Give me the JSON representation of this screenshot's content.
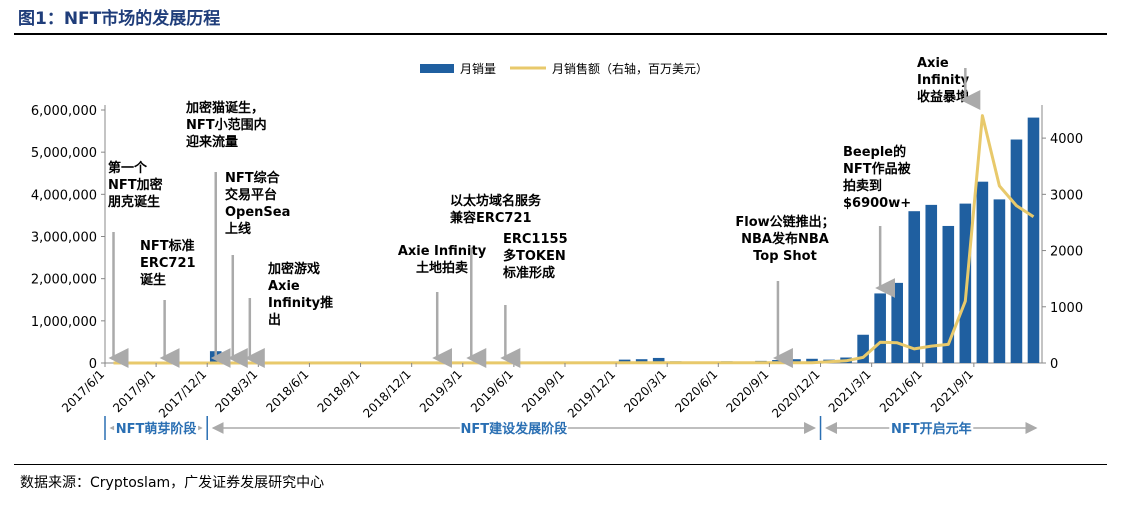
{
  "header": {
    "title": "图1：NFT市场的发展历程"
  },
  "footer": {
    "source": "数据来源：Cryptoslam，广发证券发展研究中心"
  },
  "colors": {
    "bar": "#1f5fa0",
    "line": "#e8c96b",
    "axis": "#888888",
    "phase": "#2a6fb3",
    "arrow": "#aaaaaa",
    "title": "#1f3d7a"
  },
  "chart_data": {
    "type": "bar",
    "title": "",
    "series": [
      {
        "name": "月销量",
        "type": "bar",
        "axis": "left"
      },
      {
        "name": "月销售额（右轴，百万美元）",
        "type": "line",
        "axis": "right"
      }
    ],
    "legend_position": "top-right",
    "x_tick_labels": [
      "2017/6/1",
      "2017/9/1",
      "2017/12/1",
      "2018/3/1",
      "2018/6/1",
      "2018/9/1",
      "2018/12/1",
      "2019/3/1",
      "2019/6/1",
      "2019/9/1",
      "2019/12/1",
      "2020/3/1",
      "2020/6/1",
      "2020/9/1",
      "2020/12/1",
      "2021/3/1",
      "2021/6/1",
      "2021/9/1"
    ],
    "y_left": {
      "range": [
        0,
        6000000
      ],
      "ticks": [
        "0",
        "1,000,000",
        "2,000,000",
        "3,000,000",
        "4,000,000",
        "5,000,000",
        "6,000,000"
      ]
    },
    "y_right": {
      "range": [
        0,
        4500
      ],
      "ticks": [
        "0",
        "1000",
        "2000",
        "3000",
        "4000"
      ]
    },
    "start_month": "2017-06",
    "bars": [
      {
        "m": "2017-12",
        "v": 280000
      },
      {
        "m": "2019-12",
        "v": 80000
      },
      {
        "m": "2020-01",
        "v": 90000
      },
      {
        "m": "2020-02",
        "v": 120000
      },
      {
        "m": "2020-03",
        "v": 40000
      },
      {
        "m": "2020-06",
        "v": 40000
      },
      {
        "m": "2020-08",
        "v": 50000
      },
      {
        "m": "2020-09",
        "v": 70000
      },
      {
        "m": "2020-10",
        "v": 90000
      },
      {
        "m": "2020-11",
        "v": 100000
      },
      {
        "m": "2020-12",
        "v": 80000
      },
      {
        "m": "2021-01",
        "v": 130000
      },
      {
        "m": "2021-02",
        "v": 670000
      },
      {
        "m": "2021-03",
        "v": 1650000
      },
      {
        "m": "2021-04",
        "v": 1900000
      },
      {
        "m": "2021-05",
        "v": 3600000
      },
      {
        "m": "2021-06",
        "v": 3750000
      },
      {
        "m": "2021-07",
        "v": 3250000
      },
      {
        "m": "2021-08",
        "v": 3780000
      },
      {
        "m": "2021-09",
        "v": 4300000
      },
      {
        "m": "2021-10",
        "v": 3880000
      },
      {
        "m": "2021-11",
        "v": 5300000
      },
      {
        "m": "2021-12",
        "v": 5820000
      }
    ],
    "line": [
      {
        "m": "2017-06",
        "v": 0
      },
      {
        "m": "2020-11",
        "v": 5
      },
      {
        "m": "2021-01",
        "v": 40
      },
      {
        "m": "2021-02",
        "v": 100
      },
      {
        "m": "2021-03",
        "v": 370
      },
      {
        "m": "2021-04",
        "v": 360
      },
      {
        "m": "2021-05",
        "v": 250
      },
      {
        "m": "2021-06",
        "v": 300
      },
      {
        "m": "2021-07",
        "v": 330
      },
      {
        "m": "2021-08",
        "v": 1100
      },
      {
        "m": "2021-09",
        "v": 4400
      },
      {
        "m": "2021-10",
        "v": 3150
      },
      {
        "m": "2021-11",
        "v": 2800
      },
      {
        "m": "2021-12",
        "v": 2600
      }
    ],
    "annotations": [
      {
        "text": [
          "第一个",
          "NFT加密",
          "朋克诞生"
        ],
        "m": "2017-06",
        "ax": "left"
      },
      {
        "text": [
          "NFT标准",
          "ERC721",
          "诞生"
        ],
        "m": "2017-09",
        "ax": "left"
      },
      {
        "text": [
          "加密猫诞生，",
          "NFT小范围内",
          "迎来流量"
        ],
        "m": "2017-12",
        "ax": "left"
      },
      {
        "text": [
          "NFT综合",
          "交易平台",
          "OpenSea",
          "上线"
        ],
        "m": "2018-01",
        "ax": "left"
      },
      {
        "text": [
          "加密游戏",
          "Axie",
          "Infinity推",
          "出"
        ],
        "m": "2018-02",
        "ax": "left"
      },
      {
        "text": [
          "Axie Infinity",
          "土地拍卖"
        ],
        "m": "2019-01",
        "ax": "center"
      },
      {
        "text": [
          "以太坊域名服务",
          "兼容ERC721"
        ],
        "m": "2019-03",
        "ax": "left"
      },
      {
        "text": [
          "ERC1155",
          "多TOKEN",
          "标准形成"
        ],
        "m": "2019-05",
        "ax": "left"
      },
      {
        "text": [
          "Flow公链推出；",
          "NBA发布NBA",
          "Top Shot"
        ],
        "m": "2020-09",
        "ax": "center"
      },
      {
        "text": [
          "Beeple的",
          "NFT作品被",
          "拍卖到",
          "$6900w+"
        ],
        "m": "2021-03",
        "ax": "left"
      },
      {
        "text": [
          "Axie",
          "Infinity",
          "收益暴增"
        ],
        "m": "2021-08",
        "ax": "left"
      }
    ],
    "phases": [
      {
        "label": "NFT萌芽阶段",
        "from": "2017-06",
        "to": "2017-12"
      },
      {
        "label": "NFT建设发展阶段",
        "from": "2017-12",
        "to": "2020-12"
      },
      {
        "label": "NFT开启元年",
        "from": "2020-12",
        "to": "2021-12"
      }
    ]
  }
}
